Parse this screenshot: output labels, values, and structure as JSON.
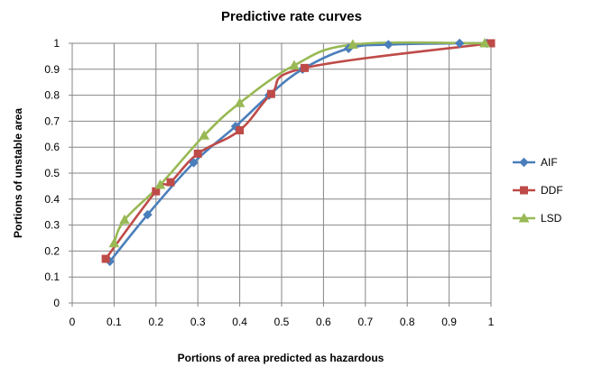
{
  "chart_data": {
    "type": "line",
    "title": "Predictive rate curves",
    "xlabel": "Portions of area predicted as hazardous",
    "ylabel": "Portions of unstable area",
    "xlim": [
      0,
      1
    ],
    "ylim": [
      0,
      1
    ],
    "xticks": [
      "0",
      "0.1",
      "0.2",
      "0.3",
      "0.4",
      "0.5",
      "0.6",
      "0.7",
      "0.8",
      "0.9",
      "1"
    ],
    "yticks": [
      "0",
      "0.1",
      "0.2",
      "0.3",
      "0.4",
      "0.5",
      "0.6",
      "0.7",
      "0.8",
      "0.9",
      "1"
    ],
    "grid": true,
    "legend_position": "right",
    "series": [
      {
        "name": "AIF",
        "color": "#4A7EBB",
        "marker": "diamond",
        "x": [
          0.09,
          0.18,
          0.29,
          0.39,
          0.47,
          0.55,
          0.66,
          0.755,
          0.925,
          0.99
        ],
        "y": [
          0.16,
          0.34,
          0.54,
          0.68,
          0.8,
          0.9,
          0.98,
          0.995,
          1.0,
          1.0
        ]
      },
      {
        "name": "DDF",
        "color": "#BE4B48",
        "marker": "square",
        "x": [
          0.08,
          0.2,
          0.235,
          0.3,
          0.4,
          0.475,
          0.555,
          1.0
        ],
        "y": [
          0.17,
          0.43,
          0.465,
          0.575,
          0.665,
          0.805,
          0.905,
          1.0
        ]
      },
      {
        "name": "LSD",
        "color": "#98B954",
        "marker": "triangle",
        "x": [
          0.1,
          0.125,
          0.21,
          0.315,
          0.4,
          0.53,
          0.67,
          0.985
        ],
        "y": [
          0.23,
          0.32,
          0.455,
          0.645,
          0.77,
          0.915,
          0.995,
          1.0
        ]
      }
    ]
  }
}
